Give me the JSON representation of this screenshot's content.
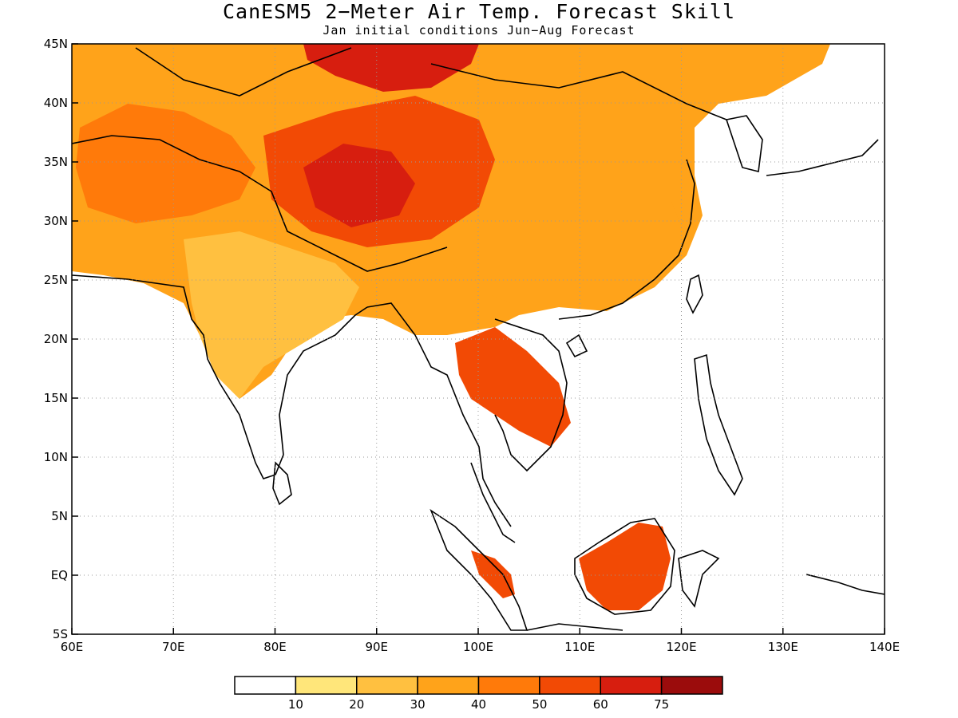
{
  "title": "CanESM5 2−Meter Air Temp. Forecast Skill",
  "subtitle": "Jan initial conditions  Jun−Aug Forecast",
  "map": {
    "lon_range": [
      60,
      140
    ],
    "lat_range": [
      -5,
      45
    ],
    "lon_ticks": [
      60,
      70,
      80,
      90,
      100,
      110,
      120,
      130,
      140
    ],
    "lon_labels": [
      "60E",
      "70E",
      "80E",
      "90E",
      "100E",
      "110E",
      "120E",
      "130E",
      "140E"
    ],
    "lat_ticks": [
      45,
      40,
      35,
      30,
      25,
      20,
      15,
      10,
      5,
      0,
      -5
    ],
    "lat_labels": [
      "45N",
      "40N",
      "35N",
      "30N",
      "25N",
      "20N",
      "15N",
      "10N",
      "5N",
      "EQ",
      "5S"
    ],
    "grid": "dotted"
  },
  "colorbar": {
    "colors": [
      "#ffffff",
      "#ffe67a",
      "#ffc040",
      "#ffa31a",
      "#ff7a0a",
      "#f24a05",
      "#d71e0f",
      "#9b0c0c"
    ],
    "labels": [
      "10",
      "20",
      "30",
      "40",
      "50",
      "60",
      "75"
    ]
  },
  "regions": [
    {
      "name": "central-asia-skill",
      "color": "#ffa31a"
    },
    {
      "name": "tibet-skill",
      "color": "#f24a05"
    },
    {
      "name": "tibet-core-skill",
      "color": "#d71e0f"
    },
    {
      "name": "mongolia-skill",
      "color": "#d71e0f"
    },
    {
      "name": "iran-afghanistan-skill",
      "color": "#ff7a0a"
    },
    {
      "name": "india-skill",
      "color": "#ffc040"
    },
    {
      "name": "china-skill",
      "color": "#ffa31a"
    },
    {
      "name": "indochina-skill",
      "color": "#f24a05"
    },
    {
      "name": "borneo-skill",
      "color": "#f24a05"
    },
    {
      "name": "sumatra-skill",
      "color": "#f24a05"
    }
  ]
}
